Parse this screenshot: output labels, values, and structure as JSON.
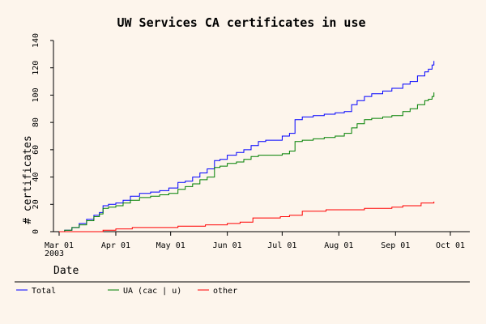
{
  "chart_data": {
    "type": "line",
    "title": "UW Services CA certificates in use",
    "xlabel": "Date",
    "ylabel": "# certificates",
    "year_label": "2003",
    "ylim": [
      0,
      140
    ],
    "yticks": [
      0,
      20,
      40,
      60,
      80,
      100,
      120,
      140
    ],
    "xticks": [
      {
        "date": "2003-03-01",
        "label": "Mar 01"
      },
      {
        "date": "2003-04-01",
        "label": "Apr 01"
      },
      {
        "date": "2003-05-01",
        "label": "May 01"
      },
      {
        "date": "2003-06-01",
        "label": "Jun 01"
      },
      {
        "date": "2003-07-01",
        "label": "Jul 01"
      },
      {
        "date": "2003-08-01",
        "label": "Aug 01"
      },
      {
        "date": "2003-09-01",
        "label": "Sep 01"
      },
      {
        "date": "2003-10-01",
        "label": "Oct 01"
      }
    ],
    "xlim": [
      "2003-03-01",
      "2003-10-01"
    ],
    "grid": false,
    "legend_position": "bottom",
    "series": [
      {
        "name": "Total",
        "color": "#0000ff",
        "points": [
          [
            "2003-03-01",
            0
          ],
          [
            "2003-03-04",
            1
          ],
          [
            "2003-03-08",
            3
          ],
          [
            "2003-03-12",
            6
          ],
          [
            "2003-03-16",
            9
          ],
          [
            "2003-03-20",
            12
          ],
          [
            "2003-03-23",
            14
          ],
          [
            "2003-03-25",
            19
          ],
          [
            "2003-03-28",
            20
          ],
          [
            "2003-04-01",
            21
          ],
          [
            "2003-04-05",
            23
          ],
          [
            "2003-04-09",
            26
          ],
          [
            "2003-04-14",
            28
          ],
          [
            "2003-04-20",
            29
          ],
          [
            "2003-04-25",
            30
          ],
          [
            "2003-04-30",
            32
          ],
          [
            "2003-05-05",
            36
          ],
          [
            "2003-05-09",
            37
          ],
          [
            "2003-05-13",
            40
          ],
          [
            "2003-05-17",
            43
          ],
          [
            "2003-05-21",
            46
          ],
          [
            "2003-05-25",
            52
          ],
          [
            "2003-05-28",
            53
          ],
          [
            "2003-06-01",
            56
          ],
          [
            "2003-06-06",
            58
          ],
          [
            "2003-06-10",
            60
          ],
          [
            "2003-06-14",
            63
          ],
          [
            "2003-06-18",
            66
          ],
          [
            "2003-06-22",
            67
          ],
          [
            "2003-06-27",
            67
          ],
          [
            "2003-07-01",
            70
          ],
          [
            "2003-07-05",
            72
          ],
          [
            "2003-07-08",
            82
          ],
          [
            "2003-07-12",
            84
          ],
          [
            "2003-07-18",
            85
          ],
          [
            "2003-07-24",
            86
          ],
          [
            "2003-07-30",
            87
          ],
          [
            "2003-08-04",
            88
          ],
          [
            "2003-08-08",
            93
          ],
          [
            "2003-08-11",
            96
          ],
          [
            "2003-08-15",
            99
          ],
          [
            "2003-08-19",
            101
          ],
          [
            "2003-08-25",
            103
          ],
          [
            "2003-08-30",
            105
          ],
          [
            "2003-09-05",
            108
          ],
          [
            "2003-09-09",
            110
          ],
          [
            "2003-09-13",
            114
          ],
          [
            "2003-09-17",
            117
          ],
          [
            "2003-09-19",
            119
          ],
          [
            "2003-09-21",
            122
          ],
          [
            "2003-09-22",
            125
          ]
        ]
      },
      {
        "name": "UA (cac | u)",
        "color": "#008000",
        "points": [
          [
            "2003-03-01",
            0
          ],
          [
            "2003-03-04",
            1
          ],
          [
            "2003-03-08",
            3
          ],
          [
            "2003-03-12",
            5
          ],
          [
            "2003-03-16",
            8
          ],
          [
            "2003-03-20",
            11
          ],
          [
            "2003-03-23",
            13
          ],
          [
            "2003-03-25",
            17
          ],
          [
            "2003-03-28",
            18
          ],
          [
            "2003-04-01",
            19
          ],
          [
            "2003-04-05",
            21
          ],
          [
            "2003-04-09",
            23
          ],
          [
            "2003-04-14",
            25
          ],
          [
            "2003-04-20",
            26
          ],
          [
            "2003-04-25",
            27
          ],
          [
            "2003-04-30",
            28
          ],
          [
            "2003-05-05",
            31
          ],
          [
            "2003-05-09",
            33
          ],
          [
            "2003-05-13",
            35
          ],
          [
            "2003-05-17",
            38
          ],
          [
            "2003-05-21",
            40
          ],
          [
            "2003-05-25",
            47
          ],
          [
            "2003-05-28",
            48
          ],
          [
            "2003-06-01",
            50
          ],
          [
            "2003-06-06",
            51
          ],
          [
            "2003-06-10",
            53
          ],
          [
            "2003-06-14",
            55
          ],
          [
            "2003-06-18",
            56
          ],
          [
            "2003-06-22",
            56
          ],
          [
            "2003-06-27",
            56
          ],
          [
            "2003-07-01",
            57
          ],
          [
            "2003-07-05",
            59
          ],
          [
            "2003-07-08",
            66
          ],
          [
            "2003-07-12",
            67
          ],
          [
            "2003-07-18",
            68
          ],
          [
            "2003-07-24",
            69
          ],
          [
            "2003-07-30",
            70
          ],
          [
            "2003-08-04",
            72
          ],
          [
            "2003-08-08",
            76
          ],
          [
            "2003-08-11",
            79
          ],
          [
            "2003-08-15",
            82
          ],
          [
            "2003-08-19",
            83
          ],
          [
            "2003-08-25",
            84
          ],
          [
            "2003-08-30",
            85
          ],
          [
            "2003-09-05",
            88
          ],
          [
            "2003-09-09",
            90
          ],
          [
            "2003-09-13",
            93
          ],
          [
            "2003-09-17",
            96
          ],
          [
            "2003-09-19",
            97
          ],
          [
            "2003-09-21",
            99
          ],
          [
            "2003-09-22",
            102
          ]
        ]
      },
      {
        "name": "other",
        "color": "#ff0000",
        "points": [
          [
            "2003-03-01",
            0
          ],
          [
            "2003-03-15",
            0
          ],
          [
            "2003-03-25",
            1
          ],
          [
            "2003-04-01",
            2
          ],
          [
            "2003-04-10",
            3
          ],
          [
            "2003-04-25",
            3
          ],
          [
            "2003-05-05",
            4
          ],
          [
            "2003-05-20",
            5
          ],
          [
            "2003-06-01",
            6
          ],
          [
            "2003-06-08",
            7
          ],
          [
            "2003-06-15",
            10
          ],
          [
            "2003-06-30",
            11
          ],
          [
            "2003-07-05",
            12
          ],
          [
            "2003-07-12",
            15
          ],
          [
            "2003-07-25",
            16
          ],
          [
            "2003-08-05",
            16
          ],
          [
            "2003-08-15",
            17
          ],
          [
            "2003-08-30",
            18
          ],
          [
            "2003-09-05",
            19
          ],
          [
            "2003-09-15",
            21
          ],
          [
            "2003-09-22",
            22
          ]
        ]
      }
    ]
  }
}
